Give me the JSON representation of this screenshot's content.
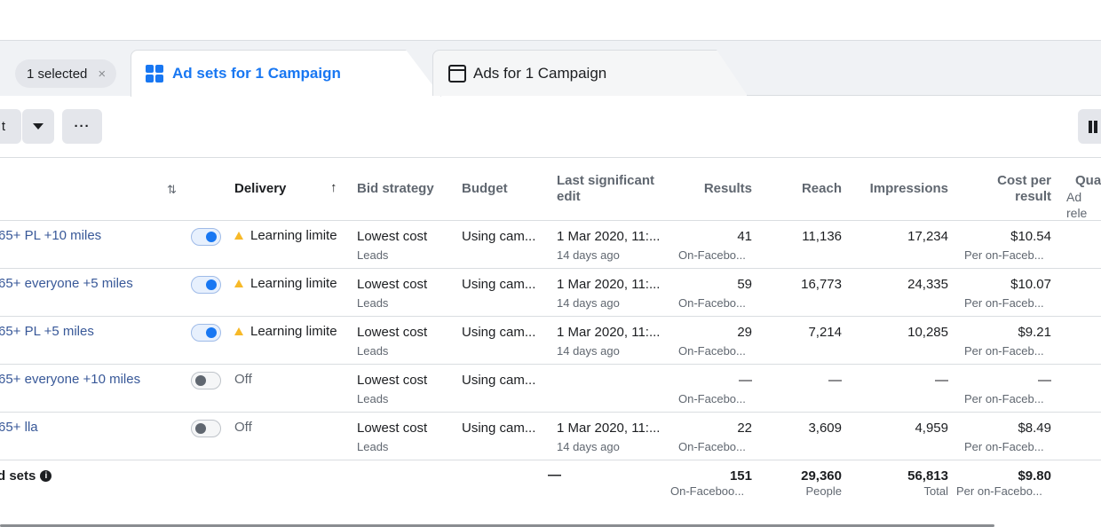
{
  "tabs": {
    "selection_chip": "1 selected",
    "selection_clear": "×",
    "adsets_tab": "Ad sets for 1 Campaign",
    "ads_tab": "Ads for 1 Campaign"
  },
  "toolbar": {
    "partial_button": "t",
    "more_button": "···"
  },
  "columns": {
    "sort": "⇅",
    "delivery": "Delivery",
    "delivery_sort": "↑",
    "bid_strategy": "Bid strategy",
    "budget": "Budget",
    "last_edit": "Last significant edit",
    "results": "Results",
    "reach": "Reach",
    "impressions": "Impressions",
    "cost_per_result": "Cost per result",
    "quality": "Qua",
    "quality_sub": "Ad rele"
  },
  "rows": [
    {
      "name": "65+ PL +10 miles",
      "toggle": "on",
      "delivery": "Learning limite",
      "delivery_warning": true,
      "bid": "Lowest cost",
      "bid_sub": "Leads",
      "budget": "Using cam...",
      "edit": "1 Mar 2020, 11:...",
      "edit_sub": "14 days ago",
      "results": "41",
      "results_sub": "On-Facebo...",
      "reach": "11,136",
      "impressions": "17,234",
      "cost": "$10.54",
      "cost_sub": "Per on-Faceb..."
    },
    {
      "name": "65+ everyone +5 miles",
      "toggle": "on",
      "delivery": "Learning limite",
      "delivery_warning": true,
      "bid": "Lowest cost",
      "bid_sub": "Leads",
      "budget": "Using cam...",
      "edit": "1 Mar 2020, 11:...",
      "edit_sub": "14 days ago",
      "results": "59",
      "results_sub": "On-Facebo...",
      "reach": "16,773",
      "impressions": "24,335",
      "cost": "$10.07",
      "cost_sub": "Per on-Faceb..."
    },
    {
      "name": "65+ PL +5 miles",
      "toggle": "on",
      "delivery": "Learning limite",
      "delivery_warning": true,
      "bid": "Lowest cost",
      "bid_sub": "Leads",
      "budget": "Using cam...",
      "edit": "1 Mar 2020, 11:...",
      "edit_sub": "14 days ago",
      "results": "29",
      "results_sub": "On-Facebo...",
      "reach": "7,214",
      "impressions": "10,285",
      "cost": "$9.21",
      "cost_sub": "Per on-Faceb..."
    },
    {
      "name": "65+ everyone +10 miles",
      "toggle": "off",
      "delivery": "Off",
      "delivery_warning": false,
      "bid": "Lowest cost",
      "bid_sub": "Leads",
      "budget": "Using cam...",
      "edit": "",
      "edit_sub": "",
      "results": "—",
      "results_sub": "On-Facebo...",
      "reach": "—",
      "impressions": "—",
      "cost": "—",
      "cost_sub": "Per on-Faceb..."
    },
    {
      "name": "65+ lla",
      "toggle": "off",
      "delivery": "Off",
      "delivery_warning": false,
      "bid": "Lowest cost",
      "bid_sub": "Leads",
      "budget": "Using cam...",
      "edit": "1 Mar 2020, 11:...",
      "edit_sub": "14 days ago",
      "results": "22",
      "results_sub": "On-Facebo...",
      "reach": "3,609",
      "impressions": "4,959",
      "cost": "$8.49",
      "cost_sub": "Per on-Faceb..."
    }
  ],
  "totals": {
    "label": "d sets",
    "info": "i",
    "edit": "—",
    "results": "151",
    "results_sub": "On-Faceboo...",
    "reach": "29,360",
    "reach_sub": "People",
    "impressions": "56,813",
    "impressions_sub": "Total",
    "cost": "$9.80",
    "cost_sub": "Per on-Facebo..."
  }
}
